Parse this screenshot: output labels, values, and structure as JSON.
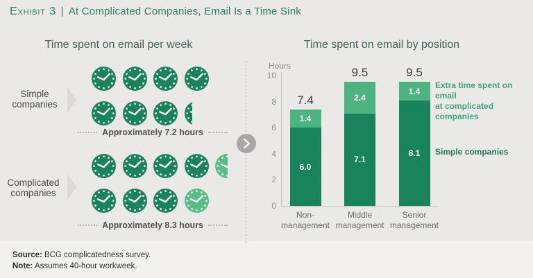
{
  "header": {
    "exhibit_label": "Exhibit 3",
    "separator": "|",
    "title": "At Complicated Companies, Email Is a Time Sink"
  },
  "left_panel": {
    "title": "Time spent on email per week",
    "groups": [
      {
        "label": "Simple\ncompanies",
        "caption": "Approximately 7.2 hours",
        "approx_hours": 7.2,
        "rows": [
          [
            "dark",
            "dark",
            "dark",
            "dark"
          ],
          [
            "dark",
            "dark",
            "dark",
            "dark-sliver"
          ]
        ]
      },
      {
        "label": "Complicated\ncompanies",
        "caption": "Approximately 8.3 hours",
        "approx_hours": 8.3,
        "rows": [
          [
            "dark",
            "dark",
            "dark",
            "dark",
            "light-half"
          ],
          [
            "dark",
            "dark",
            "dark",
            "light"
          ]
        ]
      }
    ]
  },
  "right_panel": {
    "title": "Time spent on email by position"
  },
  "chart_data": {
    "type": "bar",
    "stacked": true,
    "title": "Time spent on email by position",
    "ylabel": "Hours",
    "ylim": [
      0,
      10
    ],
    "yticks": [
      0,
      2,
      4,
      6,
      8,
      10
    ],
    "grid": false,
    "legend_position": "right",
    "categories": [
      "Non-\nmanagement",
      "Middle\nmanagement",
      "Senior\nmanagement"
    ],
    "series": [
      {
        "name": "Simple companies",
        "color": "#18835c",
        "values": [
          6.0,
          7.1,
          8.1
        ],
        "labels": [
          "6.0",
          "7.1",
          "8.1"
        ]
      },
      {
        "name": "Extra time spent on email at complicated companies",
        "color": "#4db381",
        "values": [
          1.4,
          2.4,
          1.4
        ],
        "labels": [
          "1.4",
          "2.4",
          "1.4"
        ]
      }
    ],
    "totals": [
      7.4,
      9.5,
      9.5
    ],
    "totals_labels": [
      "7.4",
      "9.5",
      "9.5"
    ],
    "legend": [
      {
        "text": "Extra time spent on email\nat complicated companies",
        "color": "#3fa878"
      },
      {
        "text": "Simple companies",
        "color": "#1c7c5b"
      }
    ]
  },
  "divider": {
    "arrow_icon": "chevron-right"
  },
  "footer": {
    "source_label": "Source:",
    "source_text": "BCG complicatedness survey.",
    "note_label": "Note:",
    "note_text": "Assumes 40-hour workweek."
  },
  "colors": {
    "background": "#eae9e7",
    "footer_band": "#f2f1ef",
    "accent_dark_green": "#18835c",
    "accent_light_green": "#4db381",
    "clock_light_green": "#58bd86",
    "header_green": "#2b8065",
    "panel_title": "#41635a"
  }
}
